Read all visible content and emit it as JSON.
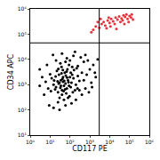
{
  "chart_data": {
    "type": "scatter",
    "xlabel": "CD117 PE",
    "ylabel": "CD34 APC",
    "log": true,
    "marker": "circle",
    "xlim": [
      1,
      1000000
    ],
    "ylim": [
      10,
      1000000
    ],
    "xticks": [
      {
        "value": 1,
        "label": "10⁰"
      },
      {
        "value": 10,
        "label": "10¹"
      },
      {
        "value": 100,
        "label": "10²"
      },
      {
        "value": 1000,
        "label": "10³"
      },
      {
        "value": 10000,
        "label": "10⁴"
      },
      {
        "value": 100000,
        "label": "10⁵"
      },
      {
        "value": 1000000,
        "label": "10⁶"
      }
    ],
    "yticks": [
      {
        "value": 10,
        "label": "10¹"
      },
      {
        "value": 100,
        "label": "10²"
      },
      {
        "value": 1000,
        "label": "10³"
      },
      {
        "value": 10000,
        "label": "10⁴"
      },
      {
        "value": 100000,
        "label": "10⁵"
      },
      {
        "value": 1000000,
        "label": "10⁶"
      }
    ],
    "quadrant": {
      "x": 3000,
      "y": 45000
    },
    "series": [
      {
        "color": "#000000",
        "x": [
          20,
          30,
          40,
          50,
          35,
          25,
          60,
          45,
          70,
          80,
          15,
          28,
          55,
          90,
          100,
          120,
          40,
          30,
          65,
          18,
          12,
          22,
          38,
          75,
          110,
          150,
          200,
          180,
          250,
          300,
          140,
          95,
          50,
          25,
          8,
          6,
          10,
          33,
          60,
          90,
          130,
          220,
          400,
          500,
          700,
          1000,
          1500,
          800,
          350,
          150,
          70,
          20,
          5,
          4,
          3,
          9,
          15,
          30,
          60,
          120,
          200,
          400,
          600,
          1200,
          2000,
          300,
          45,
          35,
          27,
          52,
          42,
          33,
          62,
          48,
          85,
          24,
          57,
          38,
          72,
          110,
          16,
          68,
          26,
          130,
          160,
          240,
          44,
          19,
          11,
          80,
          250,
          500,
          1800,
          3,
          7,
          14,
          40,
          100,
          1300,
          900,
          2500,
          600,
          180
        ],
        "values": [
          800,
          1200,
          600,
          900,
          1500,
          500,
          1100,
          2000,
          700,
          1500,
          1000,
          2500,
          3000,
          900,
          2000,
          1200,
          400,
          300,
          450,
          650,
          1800,
          3500,
          5000,
          4000,
          3000,
          1800,
          1000,
          600,
          2200,
          1400,
          500,
          350,
          250,
          200,
          700,
          1300,
          2600,
          7000,
          8000,
          6000,
          5000,
          4500,
          3000,
          1500,
          2500,
          4000,
          6000,
          9000,
          12000,
          14000,
          11000,
          9000,
          400,
          2000,
          900,
          150,
          120,
          100,
          150,
          180,
          250,
          400,
          700,
          1200,
          2000,
          600,
          1300,
          900,
          1100,
          1400,
          1700,
          750,
          2300,
          550,
          1250,
          1350,
          650,
          2800,
          1900,
          800,
          1450,
          3300,
          4200,
          2500,
          3800,
          700,
          3800,
          2100,
          550,
          300,
          5500,
          8000,
          3000,
          4000,
          6000,
          15000,
          17000,
          9000,
          800,
          500,
          10000,
          15000,
          20000
        ]
      },
      {
        "color": "#e8323c",
        "x": [
          1500,
          2000,
          3000,
          4000,
          5000,
          6000,
          8000,
          10000,
          12000,
          15000,
          20000,
          25000,
          30000,
          40000,
          50000,
          60000,
          80000,
          100000,
          120000,
          150000,
          7000,
          9000,
          18000,
          35000,
          45000,
          70000,
          1200,
          2500,
          11000,
          22000,
          55000,
          90000,
          130000,
          3500
        ],
        "values": [
          150000,
          200000,
          180000,
          250000,
          300000,
          220000,
          350000,
          280000,
          400000,
          320000,
          450000,
          380000,
          500000,
          420000,
          550000,
          480000,
          400000,
          520000,
          450000,
          380000,
          170000,
          450000,
          250000,
          300000,
          350000,
          600000,
          120000,
          300000,
          200000,
          160000,
          250000,
          300000,
          600000,
          400000
        ]
      }
    ]
  }
}
